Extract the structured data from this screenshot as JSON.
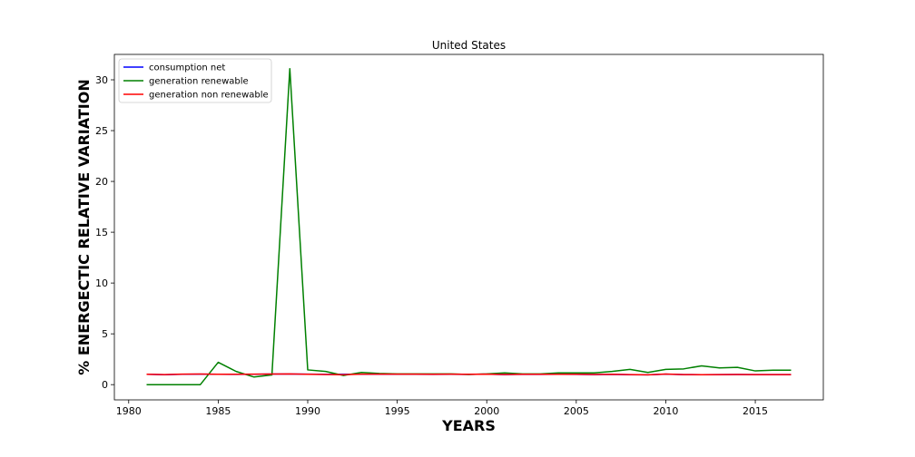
{
  "chart_data": {
    "type": "line",
    "title": "United States",
    "xlabel": "YEARS",
    "ylabel": "% ENERGECTIC RELATIVE VARIATION",
    "xlim": [
      1979.2,
      2018.8
    ],
    "ylim": [
      -1.5,
      32.5
    ],
    "xticks": [
      1980,
      1985,
      1990,
      1995,
      2000,
      2005,
      2010,
      2015
    ],
    "yticks": [
      0,
      5,
      10,
      15,
      20,
      25,
      30
    ],
    "grid": false,
    "legend_position": "top-left",
    "x": [
      1981,
      1982,
      1983,
      1984,
      1985,
      1986,
      1987,
      1988,
      1989,
      1990,
      1991,
      1992,
      1993,
      1994,
      1995,
      1996,
      1997,
      1998,
      1999,
      2000,
      2001,
      2002,
      2003,
      2004,
      2005,
      2006,
      2007,
      2008,
      2009,
      2010,
      2011,
      2012,
      2013,
      2014,
      2015,
      2016,
      2017
    ],
    "series": [
      {
        "name": "consumption net",
        "color": "#0000ff",
        "values": [
          1.02,
          0.98,
          1.02,
          1.03,
          1.02,
          1.01,
          1.02,
          1.04,
          1.04,
          1.03,
          1.01,
          1.02,
          1.02,
          1.02,
          1.02,
          1.02,
          1.01,
          1.02,
          1.01,
          1.03,
          0.99,
          1.02,
          1.01,
          1.02,
          1.01,
          0.99,
          1.01,
          0.98,
          0.97,
          1.03,
          0.99,
          0.98,
          0.99,
          1.0,
          0.99,
          0.99,
          0.99
        ]
      },
      {
        "name": "generation renewable",
        "color": "#008000",
        "values": [
          0.0,
          0.0,
          0.0,
          0.0,
          2.2,
          1.3,
          0.75,
          0.95,
          31.1,
          1.45,
          1.3,
          0.9,
          1.2,
          1.1,
          1.05,
          1.05,
          1.05,
          1.05,
          1.0,
          1.05,
          1.15,
          1.05,
          1.05,
          1.15,
          1.15,
          1.15,
          1.3,
          1.5,
          1.2,
          1.5,
          1.55,
          1.85,
          1.65,
          1.7,
          1.35,
          1.42,
          1.42
        ]
      },
      {
        "name": "generation non renewable",
        "color": "#ff0000",
        "values": [
          1.02,
          0.99,
          1.03,
          1.04,
          1.02,
          1.02,
          1.03,
          1.04,
          1.05,
          1.02,
          1.0,
          0.98,
          1.03,
          1.03,
          1.03,
          1.03,
          1.02,
          1.03,
          1.02,
          1.03,
          1.0,
          1.02,
          1.02,
          1.02,
          1.02,
          1.0,
          1.02,
          0.99,
          0.96,
          1.04,
          0.99,
          0.98,
          0.99,
          1.0,
          0.99,
          0.99,
          0.99
        ]
      }
    ]
  }
}
